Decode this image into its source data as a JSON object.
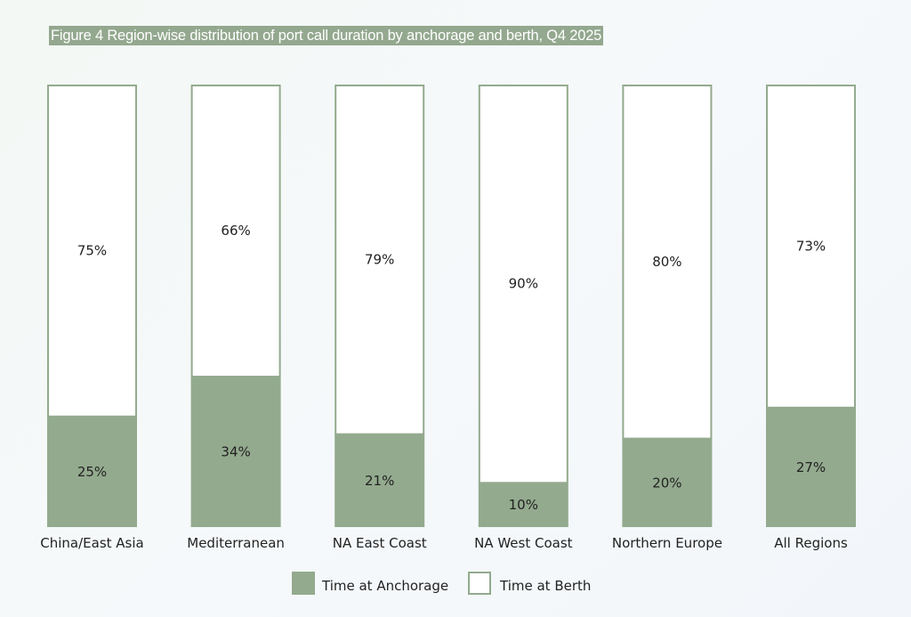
{
  "chart_data": {
    "type": "bar",
    "stacked": true,
    "percent": true,
    "title": "Figure 4 Region-wise distribution of port call duration by anchorage and berth, Q4 2025",
    "categories": [
      "China/East Asia",
      "Mediterranean",
      "NA East Coast",
      "NA West Coast",
      "Northern Europe",
      "All Regions"
    ],
    "series": [
      {
        "name": "Time at Anchorage",
        "values": [
          25,
          34,
          21,
          10,
          20,
          27
        ],
        "color": "#93aa8e"
      },
      {
        "name": "Time at Berth",
        "values": [
          75,
          66,
          79,
          90,
          80,
          73
        ],
        "color": "#ffffff"
      }
    ],
    "ylim": [
      0,
      100
    ],
    "legend": "bottom-center",
    "grid": false,
    "bar_outline_color": "#93aa8e"
  }
}
